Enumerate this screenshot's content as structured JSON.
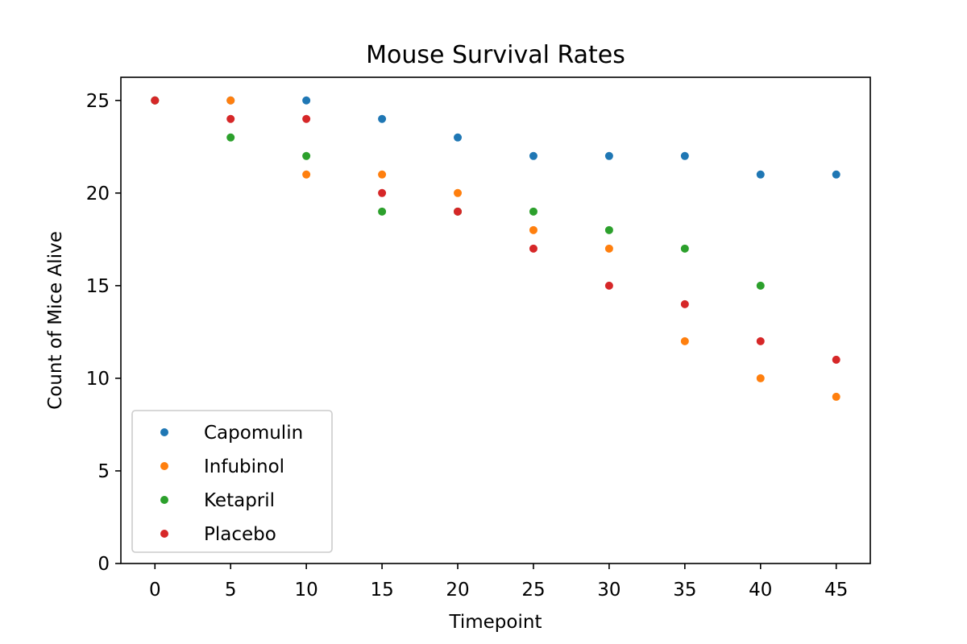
{
  "chart_data": {
    "type": "scatter",
    "title": "Mouse Survival Rates",
    "xlabel": "Timepoint",
    "ylabel": "Count of Mice Alive",
    "xlim": [
      -2.25,
      47.25
    ],
    "ylim": [
      0,
      26.25
    ],
    "xticks": [
      0,
      5,
      10,
      15,
      20,
      25,
      30,
      35,
      40,
      45
    ],
    "yticks": [
      0,
      5,
      10,
      15,
      20,
      25
    ],
    "grid": false,
    "legend_position": "lower-left",
    "x": [
      0,
      5,
      10,
      15,
      20,
      25,
      30,
      35,
      40,
      45
    ],
    "series": [
      {
        "name": "Capomulin",
        "color": "#1f77b4",
        "values": [
          25,
          25,
          25,
          24,
          23,
          22,
          22,
          22,
          21,
          21
        ]
      },
      {
        "name": "Infubinol",
        "color": "#ff7f0e",
        "values": [
          25,
          25,
          21,
          21,
          20,
          18,
          17,
          12,
          10,
          9
        ]
      },
      {
        "name": "Ketapril",
        "color": "#2ca02c",
        "values": [
          25,
          23,
          22,
          19,
          19,
          19,
          18,
          17,
          15,
          null
        ]
      },
      {
        "name": "Placebo",
        "color": "#d62728",
        "values": [
          25,
          24,
          24,
          20,
          19,
          17,
          15,
          14,
          12,
          11
        ]
      }
    ]
  }
}
